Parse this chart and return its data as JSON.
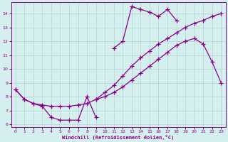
{
  "xlabel": "Windchill (Refroidissement éolien,°C)",
  "bg_color": "#d5eeee",
  "grid_color": "#b8d8d8",
  "line_color": "#880088",
  "xlim_min": -0.5,
  "xlim_max": 23.5,
  "ylim_min": 5.8,
  "ylim_max": 14.8,
  "yticks": [
    6,
    7,
    8,
    9,
    10,
    11,
    12,
    13,
    14
  ],
  "xticks": [
    0,
    1,
    2,
    3,
    4,
    5,
    6,
    7,
    8,
    9,
    10,
    11,
    12,
    13,
    14,
    15,
    16,
    17,
    18,
    19,
    20,
    21,
    22,
    23
  ],
  "c1_x": [
    0,
    1,
    2,
    3,
    4,
    5,
    6,
    7,
    8,
    9
  ],
  "c1_y": [
    8.5,
    7.8,
    7.5,
    7.3,
    6.5,
    6.3,
    6.3,
    6.3,
    8.0,
    6.5
  ],
  "c2_x": [
    0,
    1,
    2,
    3,
    4,
    5,
    6,
    7,
    8,
    9,
    10,
    11,
    12,
    13,
    14,
    15,
    16,
    17,
    18,
    19,
    20,
    21,
    22,
    23
  ],
  "c2_y": [
    8.5,
    7.8,
    7.5,
    7.4,
    7.3,
    7.3,
    7.3,
    7.4,
    7.5,
    7.8,
    8.0,
    8.3,
    8.7,
    9.2,
    9.7,
    10.2,
    10.7,
    11.2,
    11.7,
    12.0,
    12.2,
    11.8,
    10.5,
    9.0
  ],
  "c3_x": [
    9,
    10,
    11,
    12,
    13,
    14,
    15,
    16,
    17,
    18,
    19,
    20,
    21,
    22,
    23
  ],
  "c3_y": [
    7.8,
    8.3,
    8.8,
    9.5,
    10.2,
    10.8,
    11.3,
    11.8,
    12.2,
    12.6,
    13.0,
    13.3,
    13.5,
    13.8,
    14.0
  ],
  "c4_x": [
    11,
    12,
    13,
    14,
    15,
    16,
    17,
    18
  ],
  "c4_y": [
    11.5,
    12.0,
    14.5,
    14.3,
    14.1,
    13.8,
    14.3,
    13.5
  ]
}
